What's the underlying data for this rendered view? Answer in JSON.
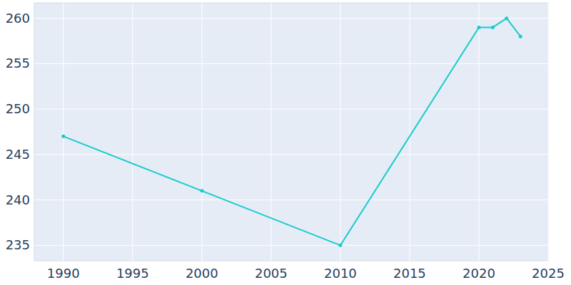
{
  "chart_data": {
    "type": "line",
    "x": [
      1990,
      2000,
      2010,
      2020,
      2021,
      2022,
      2023
    ],
    "values": [
      247,
      241,
      235,
      259,
      259,
      260,
      258
    ],
    "color": "#17cccc",
    "marker": "circle",
    "xlim": [
      1987.9,
      2025
    ],
    "xticks": [
      1990,
      1995,
      2000,
      2005,
      2010,
      2015,
      2020,
      2025
    ],
    "ylim": [
      233.3,
      261.7
    ],
    "yticks": [
      235,
      240,
      245,
      250,
      255,
      260
    ],
    "grid": true
  }
}
